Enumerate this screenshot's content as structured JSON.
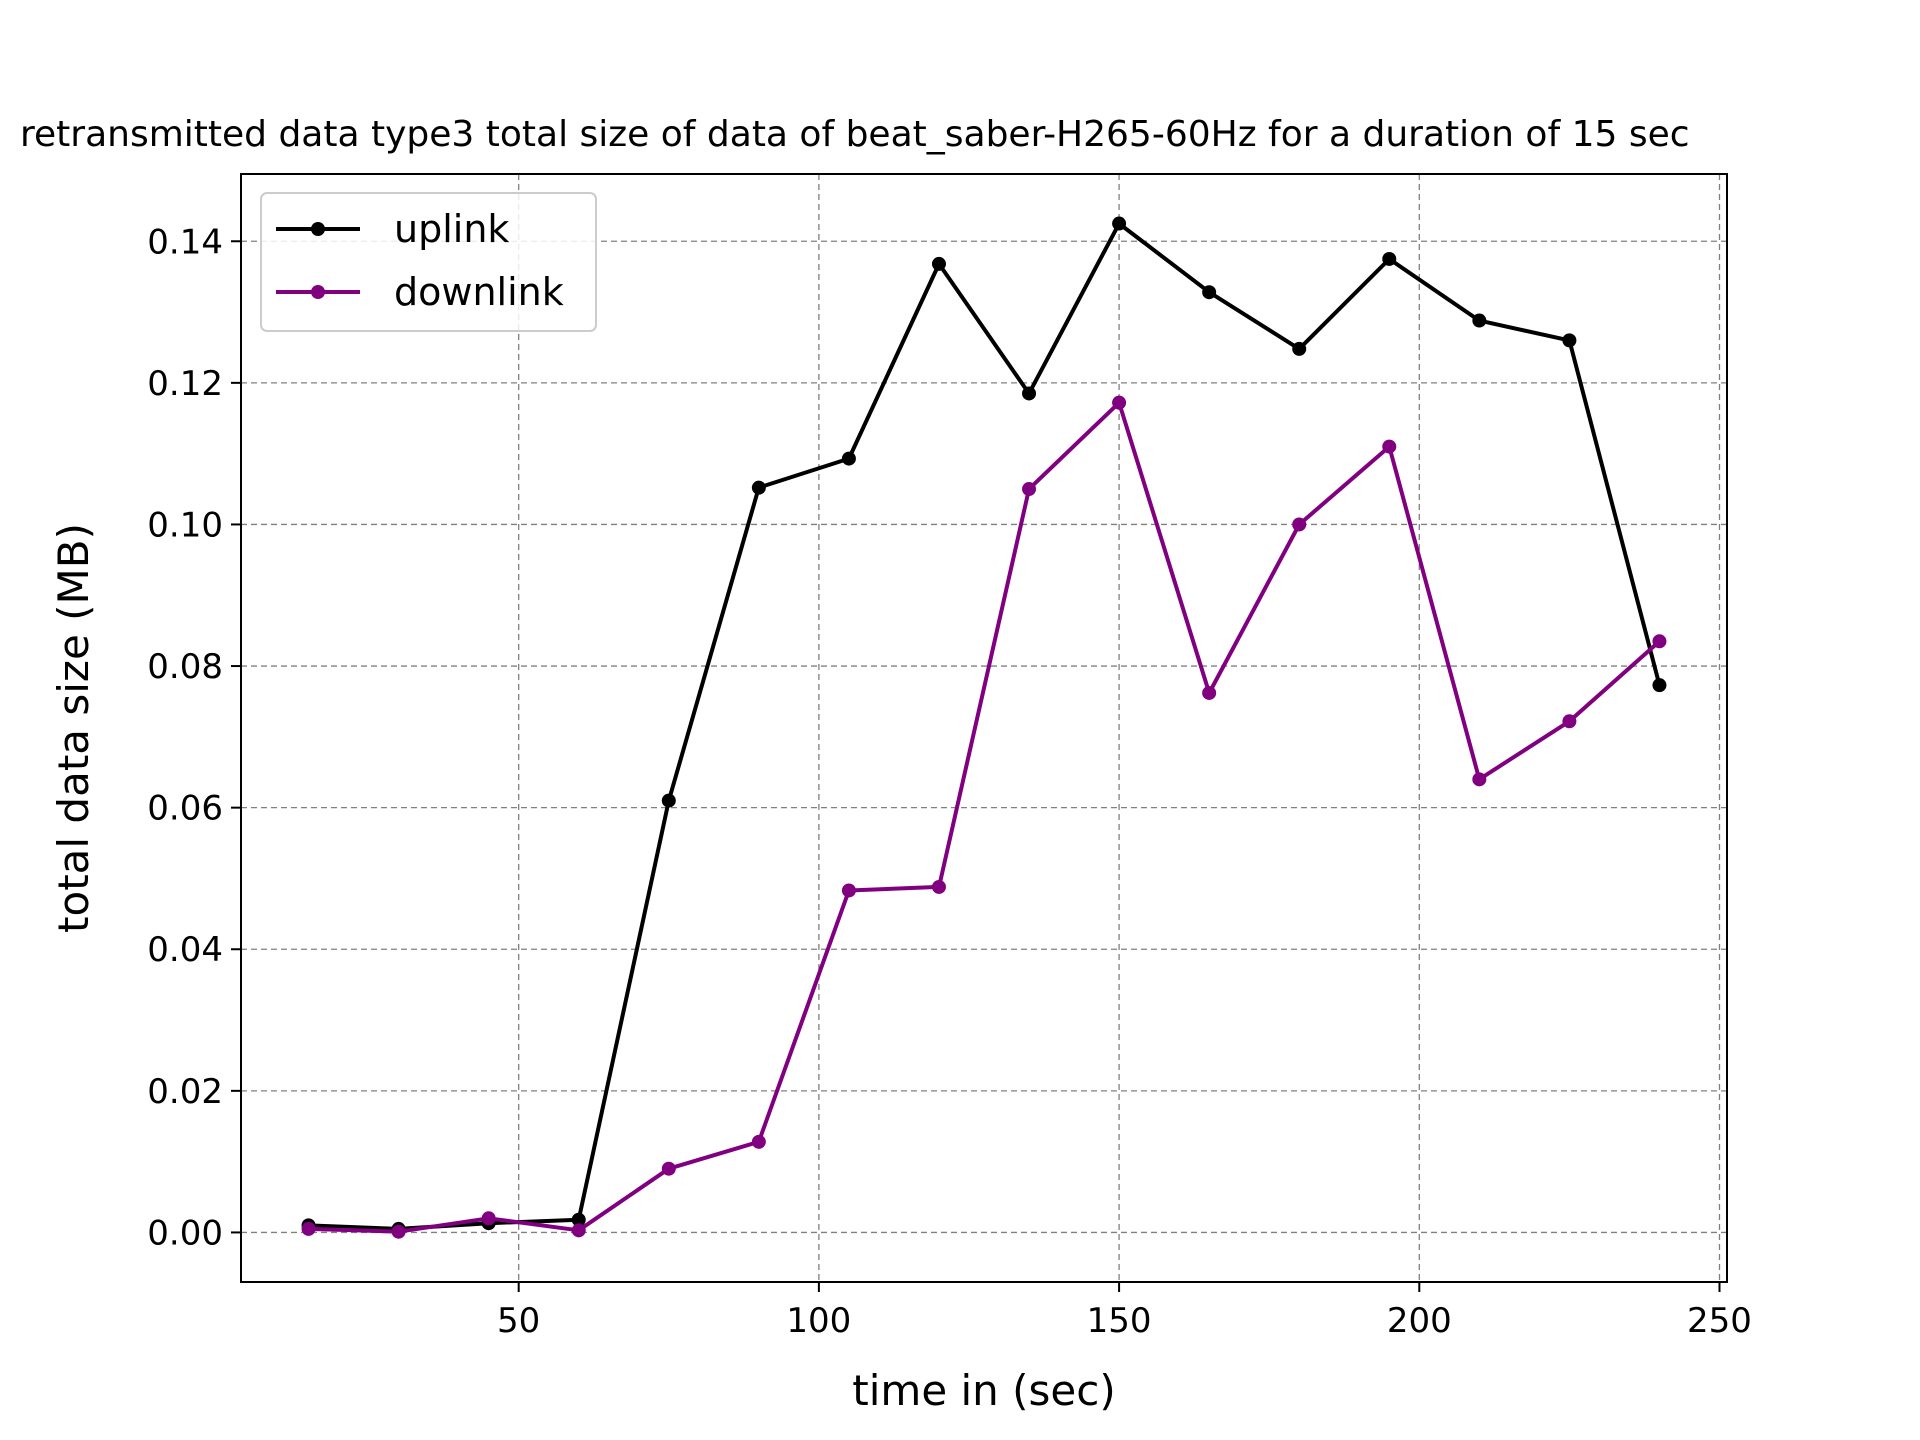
{
  "chart_data": {
    "type": "line",
    "title": "retransmitted data type3 total size of data of beat_saber-H265-60Hz for a duration of 15 sec",
    "xlabel": "time in (sec)",
    "ylabel": "total data size (MB)",
    "xlim": [
      3.75,
      251.25
    ],
    "ylim": [
      -0.007,
      0.1495
    ],
    "xticks": [
      50,
      100,
      150,
      200,
      250
    ],
    "xtick_labels": [
      "50",
      "100",
      "150",
      "200",
      "250"
    ],
    "yticks": [
      0.0,
      0.02,
      0.04,
      0.06,
      0.08,
      0.1,
      0.12,
      0.14
    ],
    "ytick_labels": [
      "0.00",
      "0.02",
      "0.04",
      "0.06",
      "0.08",
      "0.10",
      "0.12",
      "0.14"
    ],
    "grid": true,
    "legend_position": "upper-left",
    "x": [
      15,
      30,
      45,
      60,
      75,
      90,
      105,
      120,
      135,
      150,
      165,
      180,
      195,
      210,
      225,
      240
    ],
    "series": [
      {
        "name": "uplink",
        "color": "#000000",
        "values": [
          0.001,
          0.0005,
          0.0013,
          0.0018,
          0.061,
          0.1052,
          0.1093,
          0.1368,
          0.1185,
          0.1425,
          0.1328,
          0.1248,
          0.1375,
          0.1288,
          0.126,
          0.0773
        ]
      },
      {
        "name": "downlink",
        "color": "#800080",
        "values": [
          0.0005,
          0.0001,
          0.002,
          0.0003,
          0.009,
          0.0128,
          0.0483,
          0.0488,
          0.105,
          0.1172,
          0.0762,
          0.1,
          0.111,
          0.064,
          0.0722,
          0.0835
        ]
      }
    ]
  }
}
